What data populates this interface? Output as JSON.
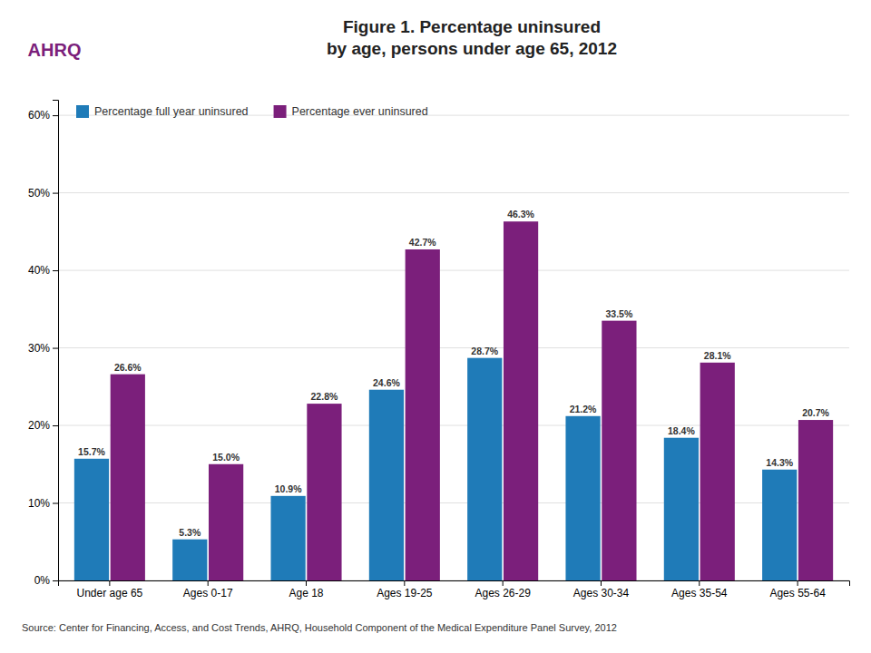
{
  "chart_data": {
    "type": "bar",
    "title": "Figure 1. Percentage uninsured\nby age, persons under age 65, 2012",
    "categories": [
      "Under age 65",
      "Ages 0-17",
      "Age 18",
      "Ages 19-25",
      "Ages 26-29",
      "Ages 30-34",
      "Ages 35-54",
      "Ages 55-64"
    ],
    "series": [
      {
        "name": "Percentage full year uninsured",
        "color": "#1F7BB8",
        "values": [
          15.7,
          5.3,
          10.9,
          24.6,
          28.7,
          21.2,
          18.4,
          14.3
        ],
        "value_labels": [
          "15.7%",
          "5.3%",
          "10.9%",
          "24.6%",
          "28.7%",
          "21.2%",
          "18.4%",
          "14.3%"
        ]
      },
      {
        "name": "Percentage ever uninsured",
        "color": "#7B1F7B",
        "values": [
          26.6,
          15.0,
          22.8,
          42.7,
          46.3,
          33.5,
          28.1,
          20.7
        ],
        "value_labels": [
          "26.6%",
          "15.0%",
          "22.8%",
          "42.7%",
          "46.3%",
          "33.5%",
          "28.1%",
          "20.7%"
        ]
      }
    ],
    "ylim": [
      0,
      62
    ],
    "yticks": [
      {
        "value": 0,
        "label": "0%"
      },
      {
        "value": 10,
        "label": "10%"
      },
      {
        "value": 20,
        "label": "20%"
      },
      {
        "value": 30,
        "label": "30%"
      },
      {
        "value": 40,
        "label": "40%"
      },
      {
        "value": 50,
        "label": "50%"
      },
      {
        "value": 60,
        "label": "60%"
      }
    ],
    "grid": true,
    "legend": "upper left",
    "data_labels": true,
    "annotations": [
      "AHRQ",
      "Source: Center for Financing, Access, and Cost Trends, AHRQ, Household Component of the Medical Expenditure Panel Survey, 2012"
    ]
  }
}
